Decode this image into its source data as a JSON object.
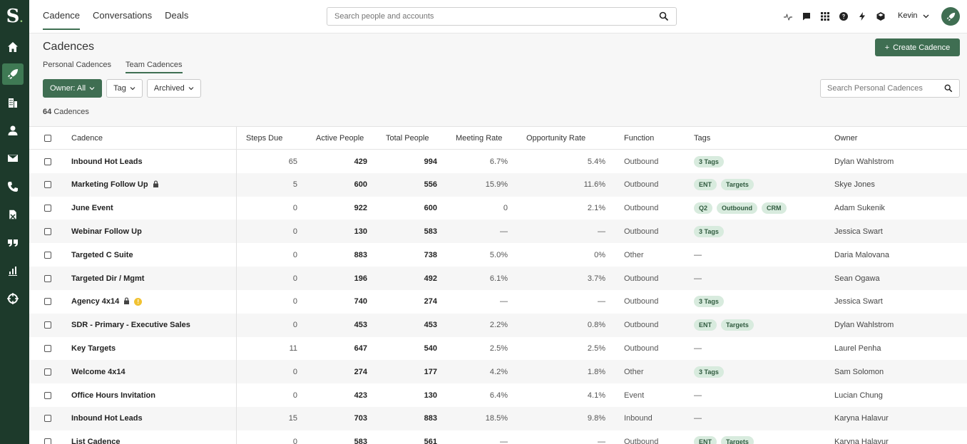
{
  "logo": {
    "letter": "S",
    "dot": "."
  },
  "topnav": {
    "items": [
      "Cadence",
      "Conversations",
      "Deals"
    ]
  },
  "search": {
    "placeholder": "Search people and accounts"
  },
  "user": {
    "name": "Kevin"
  },
  "header": {
    "title": "Cadences",
    "create_label": "Create Cadence",
    "subtabs": [
      "Personal Cadences",
      "Team Cadences"
    ],
    "filters": [
      "Owner: All",
      "Tag",
      "Archived"
    ],
    "count_number": "64",
    "count_label": "Cadences",
    "search_placeholder": "Search Personal Cadences"
  },
  "table": {
    "columns": [
      "Cadence",
      "Steps Due",
      "Active People",
      "Total People",
      "Meeting Rate",
      "Opportunity Rate",
      "Function",
      "Tags",
      "Owner"
    ],
    "rows": [
      {
        "name": "Inbound Hot Leads",
        "steps": "65",
        "active": "429",
        "total": "994",
        "meeting": "6.7%",
        "opp": "5.4%",
        "func": "Outbound",
        "tags": [
          "3 Tags"
        ],
        "owner": "Dylan Wahlstrom"
      },
      {
        "name": "Marketing Follow Up",
        "lock": true,
        "steps": "5",
        "active": "600",
        "total": "556",
        "meeting": "15.9%",
        "opp": "11.6%",
        "func": "Outbound",
        "tags": [
          "ENT",
          "Targets"
        ],
        "owner": "Skye Jones"
      },
      {
        "name": "June Event",
        "steps": "0",
        "active": "922",
        "total": "600",
        "meeting": "0",
        "opp": "2.1%",
        "func": "Outbound",
        "tags": [
          "Q2",
          "Outbound",
          "CRM"
        ],
        "owner": "Adam Sukenik"
      },
      {
        "name": "Webinar Follow Up",
        "steps": "0",
        "active": "130",
        "total": "583",
        "meeting": "—",
        "opp": "—",
        "func": "Outbound",
        "tags": [
          "3 Tags"
        ],
        "owner": "Jessica Swart"
      },
      {
        "name": "Targeted C Suite",
        "steps": "0",
        "active": "883",
        "total": "738",
        "meeting": "5.0%",
        "opp": "0%",
        "func": "Other",
        "tags": [],
        "tag_text": "—",
        "owner": "Daria Malovana"
      },
      {
        "name": "Targeted Dir / Mgmt",
        "steps": "0",
        "active": "196",
        "total": "492",
        "meeting": "6.1%",
        "opp": "3.7%",
        "func": "Outbound",
        "tags": [],
        "tag_text": "—",
        "owner": "Sean Ogawa"
      },
      {
        "name": "Agency 4x14",
        "lock": true,
        "warn": "!",
        "steps": "0",
        "active": "740",
        "total": "274",
        "meeting": "—",
        "opp": "—",
        "func": "Outbound",
        "tags": [
          "3 Tags"
        ],
        "owner": "Jessica Swart"
      },
      {
        "name": "SDR - Primary - Executive Sales",
        "steps": "0",
        "active": "453",
        "total": "453",
        "meeting": "2.2%",
        "opp": "0.8%",
        "func": "Outbound",
        "tags": [
          "ENT",
          "Targets"
        ],
        "owner": "Dylan Wahlstrom"
      },
      {
        "name": "Key Targets",
        "steps": "11",
        "active": "647",
        "total": "540",
        "meeting": "2.5%",
        "opp": "2.5%",
        "func": "Outbound",
        "tags": [],
        "tag_text": "—",
        "owner": "Laurel Penha"
      },
      {
        "name": "Welcome 4x14",
        "steps": "0",
        "active": "274",
        "total": "177",
        "meeting": "4.2%",
        "opp": "1.8%",
        "func": "Other",
        "tags": [
          "3 Tags"
        ],
        "owner": "Sam Solomon"
      },
      {
        "name": "Office Hours Invitation",
        "steps": "0",
        "active": "423",
        "total": "130",
        "meeting": "6.4%",
        "opp": "4.1%",
        "func": "Event",
        "tags": [],
        "tag_text": "—",
        "owner": "Lucian Chung"
      },
      {
        "name": "Inbound Hot Leads",
        "steps": "15",
        "active": "703",
        "total": "883",
        "meeting": "18.5%",
        "opp": "9.8%",
        "func": "Inbound",
        "tags": [],
        "tag_text": "—",
        "owner": "Karyna Halavur"
      },
      {
        "name": "List Cadence",
        "steps": "0",
        "active": "583",
        "total": "561",
        "meeting": "—",
        "opp": "—",
        "func": "Outbound",
        "tags": [
          "ENT",
          "Targets"
        ],
        "owner": "Karyna Halavur"
      }
    ]
  }
}
